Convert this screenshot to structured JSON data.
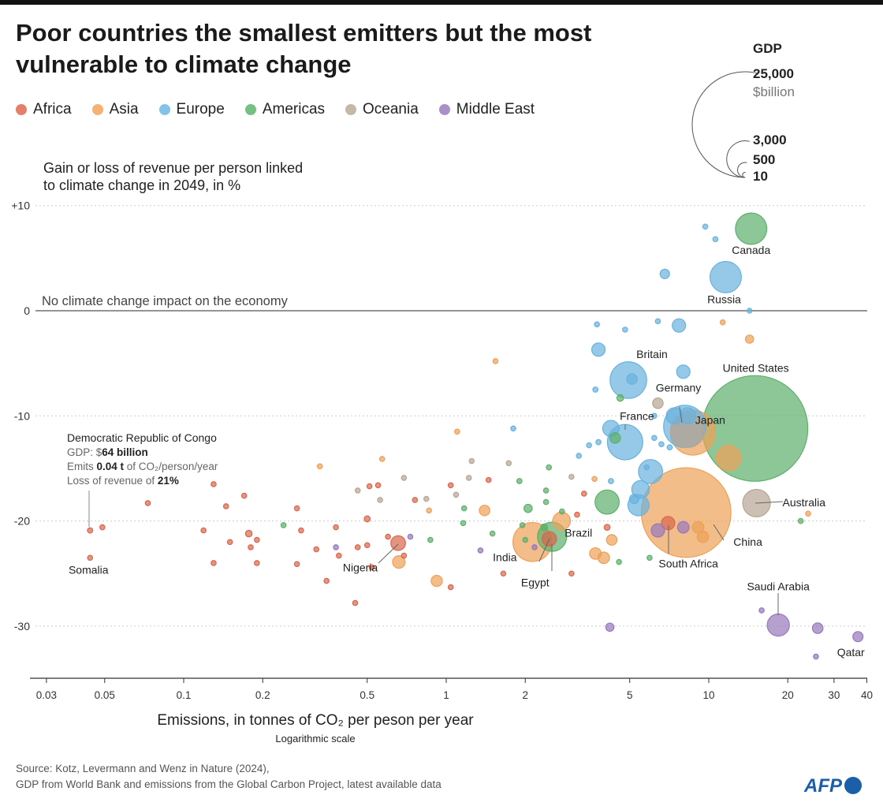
{
  "title": "Poor countries the smallest emitters but the most vulnerable to climate change",
  "legend": [
    {
      "label": "Africa",
      "color": "#e0694f"
    },
    {
      "label": "Asia",
      "color": "#f5a55a"
    },
    {
      "label": "Europe",
      "color": "#6cb8e6"
    },
    {
      "label": "Americas",
      "color": "#5fb56e"
    },
    {
      "label": "Oceania",
      "color": "#bcab98"
    },
    {
      "label": "Middle East",
      "color": "#9b7cc2"
    }
  ],
  "size_legend": {
    "title": "GDP",
    "items": [
      "25,000",
      "3,000",
      "500",
      "10"
    ],
    "unit": "$billion",
    "values": [
      25000,
      3000,
      500,
      10
    ]
  },
  "source": [
    "Source: Kotz, Levermann and Wenz in Nature (2024),",
    "GDP from World Bank and emissions from the Global Carbon Project, latest available data"
  ],
  "logo": "AFP",
  "chart_data": {
    "type": "scatter",
    "ylabel": "Gain or loss of revenue per person linked to climate change in 2049, in %",
    "xlabel": "Emissions, in tonnes of CO₂ per peson per year",
    "xsublabel": "Logarithmic scale",
    "xscale": "log",
    "xlim": [
      0.03,
      40
    ],
    "ylim": [
      -35,
      12
    ],
    "xticks": [
      "0.03",
      "0.05",
      "0.1",
      "0.2",
      "0.5",
      "1",
      "2",
      "5",
      "10",
      "20",
      "30",
      "40"
    ],
    "xtick_values": [
      0.03,
      0.05,
      0.1,
      0.2,
      0.5,
      1,
      2,
      5,
      10,
      20,
      30,
      40
    ],
    "yticks": [
      "+10",
      "0",
      "-10",
      "-20",
      "-30"
    ],
    "ytick_values": [
      10,
      0,
      -10,
      -20,
      -30
    ],
    "zero_line_label": "No climate change impact on the economy",
    "annotation": {
      "title": "Democratic Republic of Congo",
      "lines": [
        {
          "pre": "GDP: $",
          "bold": "64 billion",
          "post": ""
        },
        {
          "pre": "Emits ",
          "bold": "0.04 t",
          "post": " of CO₂/person/year"
        },
        {
          "pre": "Loss of revenue of ",
          "bold": "21%",
          "post": ""
        }
      ]
    },
    "size_field": "GDP ($billion)",
    "points": [
      {
        "name": "United States",
        "region": "Americas",
        "x": 15.0,
        "y": -11.2,
        "gdp": 25000
      },
      {
        "name": "China",
        "region": "Asia",
        "x": 8.2,
        "y": -19.2,
        "gdp": 18000
      },
      {
        "name": "",
        "region": "Oceania",
        "x": 8.3,
        "y": -11.4,
        "gdp": 2600
      },
      {
        "name": "Japan",
        "region": "Asia",
        "x": 8.7,
        "y": -11.6,
        "gdp": 4500
      },
      {
        "name": "Germany",
        "region": "Europe",
        "x": 8.1,
        "y": -11.0,
        "gdp": 4000
      },
      {
        "name": "Canada",
        "region": "Americas",
        "x": 14.5,
        "y": 7.8,
        "gdp": 2200
      },
      {
        "name": "Russia",
        "region": "Europe",
        "x": 11.6,
        "y": 3.2,
        "gdp": 2200
      },
      {
        "name": "Britain",
        "region": "Europe",
        "x": 4.94,
        "y": -6.6,
        "gdp": 3000
      },
      {
        "name": "France",
        "region": "Europe",
        "x": 4.8,
        "y": -12.5,
        "gdp": 2800
      },
      {
        "name": "India",
        "region": "Asia",
        "x": 2.13,
        "y": -22.0,
        "gdp": 3400
      },
      {
        "name": "Brazil",
        "region": "Americas",
        "x": 2.53,
        "y": -21.5,
        "gdp": 1900
      },
      {
        "name": "Egypt",
        "region": "Africa",
        "x": 2.47,
        "y": -21.7,
        "gdp": 470
      },
      {
        "name": "Nigeria",
        "region": "Africa",
        "x": 0.656,
        "y": -22.1,
        "gdp": 480
      },
      {
        "name": "South Africa",
        "region": "Africa",
        "x": 7.0,
        "y": -20.2,
        "gdp": 400
      },
      {
        "name": "Australia",
        "region": "Oceania",
        "x": 15.2,
        "y": -18.3,
        "gdp": 1700
      },
      {
        "name": "Saudi Arabia",
        "region": "Middle East",
        "x": 18.4,
        "y": -29.9,
        "gdp": 1100
      },
      {
        "name": "Qatar",
        "region": "Middle East",
        "x": 37,
        "y": -31.0,
        "gdp": 230
      },
      {
        "name": "Democratic Republic of Congo",
        "region": "Africa",
        "x": 0.044,
        "y": -20.9,
        "gdp": 64
      },
      {
        "name": "Somalia",
        "region": "Africa",
        "x": 0.044,
        "y": -23.5,
        "gdp": 10
      },
      {
        "region": "Africa",
        "x": 0.049,
        "y": -20.6,
        "gdp": 20
      },
      {
        "region": "Africa",
        "x": 0.073,
        "y": -18.3,
        "gdp": 20
      },
      {
        "region": "Africa",
        "x": 0.13,
        "y": -16.5,
        "gdp": 20
      },
      {
        "region": "Africa",
        "x": 0.145,
        "y": -18.6,
        "gdp": 20
      },
      {
        "region": "Africa",
        "x": 0.17,
        "y": -17.6,
        "gdp": 20
      },
      {
        "region": "Africa",
        "x": 0.119,
        "y": -20.9,
        "gdp": 20
      },
      {
        "region": "Africa",
        "x": 0.13,
        "y": -24.0,
        "gdp": 20
      },
      {
        "region": "Africa",
        "x": 0.15,
        "y": -22.0,
        "gdp": 20
      },
      {
        "region": "Africa",
        "x": 0.177,
        "y": -21.2,
        "gdp": 100
      },
      {
        "region": "Africa",
        "x": 0.18,
        "y": -22.5,
        "gdp": 20
      },
      {
        "region": "Africa",
        "x": 0.19,
        "y": -24.0,
        "gdp": 20
      },
      {
        "region": "Africa",
        "x": 0.19,
        "y": -21.8,
        "gdp": 20
      },
      {
        "region": "Africa",
        "x": 0.27,
        "y": -18.8,
        "gdp": 20
      },
      {
        "region": "Africa",
        "x": 0.28,
        "y": -20.9,
        "gdp": 20
      },
      {
        "region": "Africa",
        "x": 0.27,
        "y": -24.1,
        "gdp": 20
      },
      {
        "region": "Africa",
        "x": 0.32,
        "y": -22.7,
        "gdp": 20
      },
      {
        "region": "Africa",
        "x": 0.35,
        "y": -25.7,
        "gdp": 20
      },
      {
        "region": "Africa",
        "x": 0.38,
        "y": -20.6,
        "gdp": 20
      },
      {
        "region": "Africa",
        "x": 0.39,
        "y": -23.3,
        "gdp": 20
      },
      {
        "region": "Africa",
        "x": 0.46,
        "y": -22.5,
        "gdp": 20
      },
      {
        "region": "Africa",
        "x": 0.5,
        "y": -19.8,
        "gdp": 80
      },
      {
        "region": "Africa",
        "x": 0.51,
        "y": -16.7,
        "gdp": 20
      },
      {
        "region": "Africa",
        "x": 0.55,
        "y": -16.6,
        "gdp": 20
      },
      {
        "region": "Africa",
        "x": 0.52,
        "y": -24.4,
        "gdp": 20
      },
      {
        "region": "Africa",
        "x": 0.45,
        "y": -27.8,
        "gdp": 20
      },
      {
        "region": "Africa",
        "x": 0.5,
        "y": -22.3,
        "gdp": 20
      },
      {
        "region": "Africa",
        "x": 0.6,
        "y": -21.5,
        "gdp": 40
      },
      {
        "region": "Africa",
        "x": 0.69,
        "y": -23.3,
        "gdp": 20
      },
      {
        "region": "Africa",
        "x": 0.76,
        "y": -18.0,
        "gdp": 20
      },
      {
        "region": "Africa",
        "x": 1.04,
        "y": -16.6,
        "gdp": 20
      },
      {
        "region": "Africa",
        "x": 1.04,
        "y": -26.3,
        "gdp": 20
      },
      {
        "region": "Africa",
        "x": 1.45,
        "y": -16.1,
        "gdp": 20
      },
      {
        "region": "Africa",
        "x": 1.65,
        "y": -25.0,
        "gdp": 20
      },
      {
        "region": "Africa",
        "x": 3.0,
        "y": -25.0,
        "gdp": 20
      },
      {
        "region": "Africa",
        "x": 3.15,
        "y": -19.4,
        "gdp": 20
      },
      {
        "region": "Africa",
        "x": 3.35,
        "y": -17.4,
        "gdp": 20
      },
      {
        "region": "Africa",
        "x": 4.1,
        "y": -20.6,
        "gdp": 80
      },
      {
        "region": "Asia",
        "x": 0.33,
        "y": -14.8,
        "gdp": 20
      },
      {
        "region": "Asia",
        "x": 0.57,
        "y": -14.1,
        "gdp": 20
      },
      {
        "region": "Asia",
        "x": 0.86,
        "y": -19.0,
        "gdp": 20
      },
      {
        "region": "Asia",
        "x": 0.92,
        "y": -25.7,
        "gdp": 280
      },
      {
        "region": "Asia",
        "x": 0.66,
        "y": -23.9,
        "gdp": 350
      },
      {
        "region": "Asia",
        "x": 1.1,
        "y": -11.5,
        "gdp": 20
      },
      {
        "region": "Asia",
        "x": 1.54,
        "y": -4.8,
        "gdp": 20
      },
      {
        "region": "Asia",
        "x": 1.4,
        "y": -19.0,
        "gdp": 250
      },
      {
        "region": "Asia",
        "x": 2.75,
        "y": -20.0,
        "gdp": 700
      },
      {
        "region": "Asia",
        "x": 3.7,
        "y": -23.1,
        "gdp": 300
      },
      {
        "region": "Asia",
        "x": 3.98,
        "y": -23.5,
        "gdp": 300
      },
      {
        "region": "Asia",
        "x": 4.27,
        "y": -21.8,
        "gdp": 250
      },
      {
        "region": "Asia",
        "x": 3.67,
        "y": -16.0,
        "gdp": 20
      },
      {
        "region": "Asia",
        "x": 11.9,
        "y": -14.0,
        "gdp": 1400
      },
      {
        "region": "Asia",
        "x": 14.3,
        "y": -2.7,
        "gdp": 150
      },
      {
        "region": "Asia",
        "x": 11.3,
        "y": -1.1,
        "gdp": 20
      },
      {
        "region": "Asia",
        "x": 9.1,
        "y": -20.6,
        "gdp": 300
      },
      {
        "region": "Asia",
        "x": 9.5,
        "y": -21.5,
        "gdp": 300
      },
      {
        "region": "Asia",
        "x": 23.9,
        "y": -19.3,
        "gdp": 20
      },
      {
        "region": "Europe",
        "x": 6.8,
        "y": 3.5,
        "gdp": 200
      },
      {
        "region": "Europe",
        "x": 9.7,
        "y": 8.0,
        "gdp": 20
      },
      {
        "region": "Europe",
        "x": 10.6,
        "y": 6.8,
        "gdp": 20
      },
      {
        "region": "Europe",
        "x": 14.3,
        "y": 0.0,
        "gdp": 20
      },
      {
        "region": "Europe",
        "x": 3.75,
        "y": -1.3,
        "gdp": 20
      },
      {
        "region": "Europe",
        "x": 4.8,
        "y": -1.8,
        "gdp": 20
      },
      {
        "region": "Europe",
        "x": 6.4,
        "y": -1.0,
        "gdp": 20
      },
      {
        "region": "Europe",
        "x": 7.7,
        "y": -1.4,
        "gdp": 400
      },
      {
        "region": "Europe",
        "x": 3.8,
        "y": -3.7,
        "gdp": 400
      },
      {
        "region": "Europe",
        "x": 5.1,
        "y": -6.5,
        "gdp": 250
      },
      {
        "region": "Europe",
        "x": 3.7,
        "y": -7.5,
        "gdp": 60
      },
      {
        "region": "Europe",
        "x": 8.0,
        "y": -5.8,
        "gdp": 400
      },
      {
        "region": "Europe",
        "x": 4.24,
        "y": -11.2,
        "gdp": 600
      },
      {
        "region": "Europe",
        "x": 3.8,
        "y": -12.5,
        "gdp": 60
      },
      {
        "region": "Europe",
        "x": 6.2,
        "y": -10.0,
        "gdp": 20
      },
      {
        "region": "Europe",
        "x": 6.2,
        "y": -12.1,
        "gdp": 20
      },
      {
        "region": "Europe",
        "x": 7.4,
        "y": -10.0,
        "gdp": 600
      },
      {
        "region": "Europe",
        "x": 8.3,
        "y": -10.0,
        "gdp": 600
      },
      {
        "region": "Europe",
        "x": 7.1,
        "y": -13.0,
        "gdp": 60
      },
      {
        "region": "Europe",
        "x": 4.24,
        "y": -16.2,
        "gdp": 60
      },
      {
        "region": "Europe",
        "x": 5.2,
        "y": -17.9,
        "gdp": 200
      },
      {
        "region": "Europe",
        "x": 6.0,
        "y": -15.3,
        "gdp": 1300
      },
      {
        "region": "Europe",
        "x": 5.5,
        "y": -17.0,
        "gdp": 700
      },
      {
        "region": "Europe",
        "x": 5.4,
        "y": -18.5,
        "gdp": 1000
      },
      {
        "region": "Europe",
        "x": 1.8,
        "y": -11.2,
        "gdp": 20
      },
      {
        "region": "Europe",
        "x": 3.2,
        "y": -13.8,
        "gdp": 20
      },
      {
        "region": "Europe",
        "x": 3.5,
        "y": -12.8,
        "gdp": 20
      },
      {
        "region": "Europe",
        "x": 5.8,
        "y": -14.9,
        "gdp": 20
      },
      {
        "region": "Europe",
        "x": 6.6,
        "y": -12.7,
        "gdp": 20
      },
      {
        "region": "Americas",
        "x": 4.4,
        "y": -12.1,
        "gdp": 250
      },
      {
        "region": "Americas",
        "x": 4.6,
        "y": -8.3,
        "gdp": 100
      },
      {
        "region": "Americas",
        "x": 4.1,
        "y": -18.2,
        "gdp": 1300
      },
      {
        "region": "Americas",
        "x": 2.36,
        "y": -20.6,
        "gdp": 100
      },
      {
        "region": "Americas",
        "x": 2.05,
        "y": -18.8,
        "gdp": 150
      },
      {
        "region": "Americas",
        "x": 1.9,
        "y": -16.2,
        "gdp": 60
      },
      {
        "region": "Americas",
        "x": 1.17,
        "y": -18.8,
        "gdp": 20
      },
      {
        "region": "Americas",
        "x": 1.16,
        "y": -20.2,
        "gdp": 20
      },
      {
        "region": "Americas",
        "x": 0.87,
        "y": -21.8,
        "gdp": 20
      },
      {
        "region": "Americas",
        "x": 2.4,
        "y": -18.2,
        "gdp": 20
      },
      {
        "region": "Americas",
        "x": 2.4,
        "y": -17.1,
        "gdp": 20
      },
      {
        "region": "Americas",
        "x": 2.76,
        "y": -19.1,
        "gdp": 20
      },
      {
        "region": "Americas",
        "x": 2.46,
        "y": -14.9,
        "gdp": 60
      },
      {
        "region": "Americas",
        "x": 1.95,
        "y": -20.4,
        "gdp": 20
      },
      {
        "region": "Americas",
        "x": 2.0,
        "y": -21.8,
        "gdp": 20
      },
      {
        "region": "Americas",
        "x": 1.5,
        "y": -21.2,
        "gdp": 20
      },
      {
        "region": "Americas",
        "x": 5.95,
        "y": -23.5,
        "gdp": 20
      },
      {
        "region": "Americas",
        "x": 4.55,
        "y": -23.9,
        "gdp": 20
      },
      {
        "region": "Americas",
        "x": 22.4,
        "y": -20.0,
        "gdp": 20
      },
      {
        "region": "Americas",
        "x": 0.24,
        "y": -20.4,
        "gdp": 20
      },
      {
        "region": "Oceania",
        "x": 6.4,
        "y": -8.8,
        "gdp": 250
      },
      {
        "region": "Oceania",
        "x": 0.46,
        "y": -17.1,
        "gdp": 20
      },
      {
        "region": "Oceania",
        "x": 0.56,
        "y": -18.0,
        "gdp": 20
      },
      {
        "region": "Oceania",
        "x": 0.84,
        "y": -17.9,
        "gdp": 20
      },
      {
        "region": "Oceania",
        "x": 1.25,
        "y": -14.3,
        "gdp": 20
      },
      {
        "region": "Oceania",
        "x": 1.22,
        "y": -15.9,
        "gdp": 20
      },
      {
        "region": "Oceania",
        "x": 1.73,
        "y": -14.5,
        "gdp": 20
      },
      {
        "region": "Oceania",
        "x": 1.09,
        "y": -17.5,
        "gdp": 20
      },
      {
        "region": "Oceania",
        "x": 3.0,
        "y": -15.8,
        "gdp": 20
      },
      {
        "region": "Oceania",
        "x": 0.69,
        "y": -15.9,
        "gdp": 20
      },
      {
        "region": "Middle East",
        "x": 4.2,
        "y": -30.1,
        "gdp": 150
      },
      {
        "region": "Middle East",
        "x": 6.4,
        "y": -20.9,
        "gdp": 400
      },
      {
        "region": "Middle East",
        "x": 8.0,
        "y": -20.6,
        "gdp": 300
      },
      {
        "region": "Middle East",
        "x": 15.9,
        "y": -28.5,
        "gdp": 40
      },
      {
        "region": "Middle East",
        "x": 26,
        "y": -30.2,
        "gdp": 250
      },
      {
        "region": "Middle East",
        "x": 25.6,
        "y": -32.9,
        "gdp": 40
      },
      {
        "region": "Middle East",
        "x": 0.38,
        "y": -22.5,
        "gdp": 20
      },
      {
        "region": "Middle East",
        "x": 0.73,
        "y": -21.5,
        "gdp": 20
      },
      {
        "region": "Middle East",
        "x": 1.35,
        "y": -22.8,
        "gdp": 20
      },
      {
        "region": "Middle East",
        "x": 2.17,
        "y": -22.5,
        "gdp": 20
      }
    ]
  }
}
